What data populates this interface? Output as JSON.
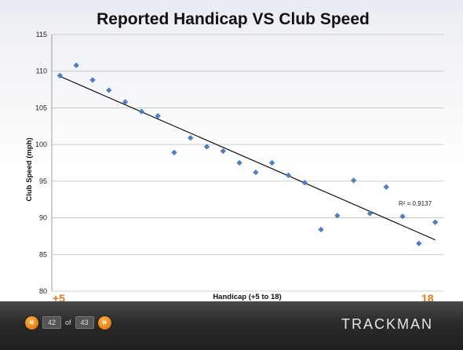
{
  "chart_data": {
    "type": "scatter",
    "title": "Reported Handicap VS Club Speed",
    "xlabel": "Handicap (+5 to 18)",
    "ylabel": "Club Speed (mph)",
    "xlim": [
      0,
      24
    ],
    "ylim": [
      80,
      115
    ],
    "yticks": [
      80,
      85,
      90,
      95,
      100,
      105,
      110,
      115
    ],
    "x_left_label": "+5",
    "x_right_label": "18",
    "grid": true,
    "points": [
      {
        "x": 0.5,
        "y": 109.4
      },
      {
        "x": 1.5,
        "y": 110.8
      },
      {
        "x": 2.5,
        "y": 108.8
      },
      {
        "x": 3.5,
        "y": 107.4
      },
      {
        "x": 4.5,
        "y": 105.8
      },
      {
        "x": 5.5,
        "y": 104.5
      },
      {
        "x": 6.5,
        "y": 103.9
      },
      {
        "x": 7.5,
        "y": 98.9
      },
      {
        "x": 8.5,
        "y": 100.9
      },
      {
        "x": 9.5,
        "y": 99.7
      },
      {
        "x": 10.5,
        "y": 99.1
      },
      {
        "x": 11.5,
        "y": 97.5
      },
      {
        "x": 12.5,
        "y": 96.2
      },
      {
        "x": 13.5,
        "y": 97.5
      },
      {
        "x": 14.5,
        "y": 95.8
      },
      {
        "x": 15.5,
        "y": 94.8
      },
      {
        "x": 16.5,
        "y": 88.4
      },
      {
        "x": 17.5,
        "y": 90.3
      },
      {
        "x": 18.5,
        "y": 95.1
      },
      {
        "x": 19.5,
        "y": 90.6
      },
      {
        "x": 20.5,
        "y": 94.2
      },
      {
        "x": 21.5,
        "y": 90.2
      },
      {
        "x": 22.5,
        "y": 86.5
      },
      {
        "x": 23.5,
        "y": 89.4
      }
    ],
    "trendline": {
      "x1": 0.5,
      "y1": 109.3,
      "x2": 23.5,
      "y2": 87.0
    },
    "r_squared_label": "R² = 0.9137",
    "marker_color": "#4f7fc0"
  },
  "pager": {
    "current_page": "42",
    "of_label": "of",
    "total_pages": "43",
    "prev_icon": "«",
    "next_icon": "»"
  },
  "brand": {
    "logo_text": "TRACKMAN",
    "accent_color": "#e87722"
  }
}
